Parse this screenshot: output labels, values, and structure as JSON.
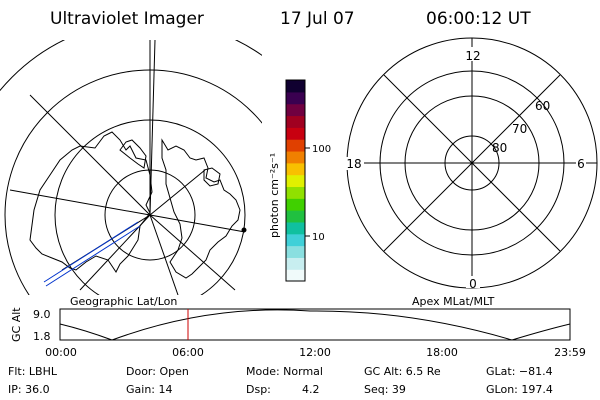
{
  "header": {
    "title": "Ultraviolet Imager",
    "date": "17 Jul 07",
    "time": "06:00:12 UT"
  },
  "colorbar": {
    "unit_label": "photon cm⁻²s⁻¹",
    "ticks": [
      "100",
      "10"
    ],
    "colors": [
      "#f0fafa",
      "#c8eef0",
      "#8adfe0",
      "#40d0d8",
      "#10c0a0",
      "#20c040",
      "#40d000",
      "#90e000",
      "#e0f000",
      "#f8c000",
      "#f08000",
      "#e04000",
      "#c80010",
      "#a00020",
      "#700040",
      "#3a0050",
      "#100030"
    ]
  },
  "geo_panel": {
    "label": "Geographic Lat/Lon"
  },
  "apex_panel": {
    "label": "Apex MLat/MLT",
    "mlt_labels": {
      "top": "12",
      "bottom": "0",
      "left": "18",
      "right": "6"
    },
    "lat_labels": [
      "60",
      "70",
      "80"
    ]
  },
  "altitude_plot": {
    "ylabel": "GC Alt",
    "y_ticks": [
      "9.0",
      "1.8"
    ],
    "x_ticks": [
      "00:00",
      "06:00",
      "12:00",
      "18:00",
      "23:59"
    ],
    "marker_color": "#cc0000"
  },
  "footer": {
    "filter": "Flt: LBHL",
    "ip": "IP: 36.0",
    "door": "Door: Open",
    "gain": "Gain: 14",
    "mode": "Mode: Normal",
    "dsp_label": "Dsp:",
    "dsp_value": "4.2",
    "gc_alt": "GC Alt: 6.5 Re",
    "seq": "Seq: 39",
    "glat": "GLat: −81.4",
    "glon": "GLon: 197.4"
  }
}
